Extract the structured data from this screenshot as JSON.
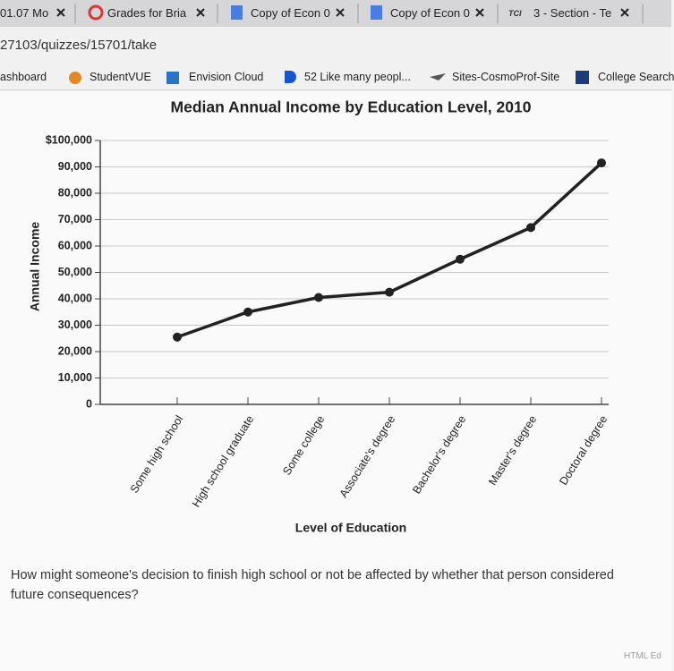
{
  "tabs": [
    "01.07 Mo",
    "Grades for Bria",
    "Copy of Econ 0",
    "Copy of Econ 0",
    "3 - Section - Te"
  ],
  "url": "27103/quizzes/15701/take",
  "bookmarks": [
    "ashboard",
    "StudentVUE",
    "Envision Cloud",
    "52 Like many peopl...",
    "Sites-CosmoProf-Site",
    "College Search"
  ],
  "chart_data": {
    "type": "line",
    "title": "Median Annual Income by Education Level, 2010",
    "x_label": "Level of Education",
    "y_label": "Annual Income",
    "categories": [
      "Some high school",
      "High school graduate",
      "Some college",
      "Associate's degree",
      "Bachelor's degree",
      "Master's degree",
      "Doctoral degree"
    ],
    "values": [
      25500,
      35000,
      40500,
      42500,
      55000,
      67000,
      91500
    ],
    "color": "#222222",
    "ylim": [
      0,
      100000
    ],
    "yticks": [
      0,
      {
        "value": 10000,
        "label": "10,000"
      },
      {
        "value": 20000,
        "label": "20,000"
      },
      {
        "value": 30000,
        "label": "30,000"
      },
      {
        "value": 40000,
        "label": "40,000"
      },
      {
        "value": 50000,
        "label": "50,000"
      },
      {
        "value": 60000,
        "label": "60,000"
      },
      {
        "value": 70000,
        "label": "70,000"
      },
      {
        "value": 80000,
        "label": "80,000"
      },
      {
        "value": 90000,
        "label": "90,000"
      },
      {
        "value": 100000,
        "label": "$100,000"
      }
    ],
    "grid": true
  },
  "question": "How might someone's decision to finish high school or not be affected by whether that person considered future consequences?",
  "footer": "HTML Ed"
}
